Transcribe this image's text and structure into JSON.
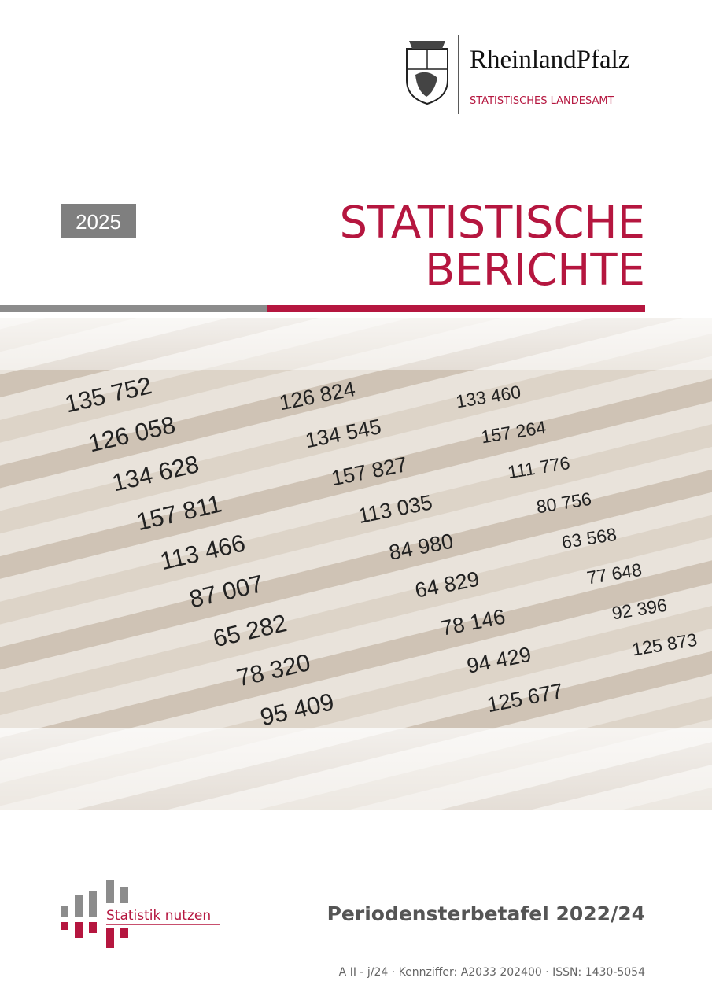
{
  "header": {
    "brand": "RheinlandPfalz",
    "office": "STATISTISCHES LANDESAMT"
  },
  "year": "2025",
  "title": {
    "line1": "STATISTISCHE",
    "line2": "BERICHTE"
  },
  "photo": {
    "columns": [
      [
        "135 752",
        "126 058",
        "134 628",
        "157 811",
        "113 466",
        "87 007",
        "65 282",
        "78 320",
        "95 409"
      ],
      [
        "126 824",
        "134 545",
        "157 827",
        "113 035",
        "84 980",
        "64 829",
        "78 146",
        "94 429",
        "125 677"
      ],
      [
        "133 460",
        "157 264",
        "111 776",
        "80 756",
        "63 568",
        "77 648",
        "92 396",
        "125 873"
      ]
    ]
  },
  "footer": {
    "slogan": "Statistik nutzen",
    "report": "Periodensterbetafel 2022/24",
    "reference": "A II - j/24 · Kennziffer: A2033 202400 · ISSN: 1430-5054"
  }
}
